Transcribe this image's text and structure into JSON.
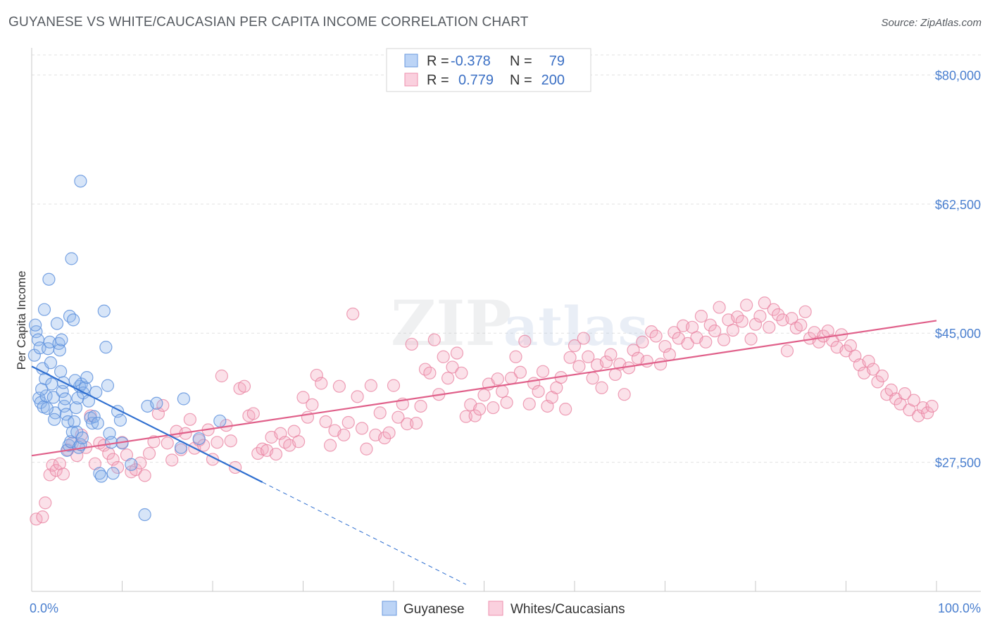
{
  "header": {
    "title": "GUYANESE VS WHITE/CAUCASIAN PER CAPITA INCOME CORRELATION CHART",
    "source": "Source: ZipAtlas.com"
  },
  "watermark": {
    "zip": "ZIP",
    "atlas": "atlas"
  },
  "legend": {
    "rows": [
      {
        "r_label": "R =",
        "r_value": "-0.378",
        "n_label": "N =",
        "n_value": "79",
        "color": "#8bb4ec"
      },
      {
        "r_label": "R =",
        "r_value": "0.779",
        "n_label": "N =",
        "n_value": "200",
        "color": "#f4a9c0"
      }
    ]
  },
  "bottom_legend": [
    {
      "label": "Guyanese",
      "color": "#8bb4ec"
    },
    {
      "label": "Whites/Caucasians",
      "color": "#f4a9c0"
    }
  ],
  "chart_data": {
    "type": "scatter",
    "title": "GUYANESE VS WHITE/CAUCASIAN PER CAPITA INCOME CORRELATION CHART",
    "xlabel": "",
    "ylabel": "Per Capita Income",
    "xlim": [
      0,
      100
    ],
    "ylim": [
      10000,
      83000
    ],
    "x_tick_labels": [
      "0.0%",
      "100.0%"
    ],
    "y_ticks": [
      27500,
      45000,
      62500,
      80000
    ],
    "y_tick_labels": [
      "$27,500",
      "$45,000",
      "$62,500",
      "$80,000"
    ],
    "grid": true,
    "legend_position": "top-center",
    "series": [
      {
        "name": "Guyanese",
        "color": "#8bb4ec",
        "stroke": "#5a8fdc",
        "trend": {
          "x0": 0,
          "y0": 40500,
          "x1": 25.5,
          "y1": 24800,
          "dash_to_x": 48,
          "color": "#2f6fd0"
        },
        "points": [
          [
            0.3,
            42000
          ],
          [
            0.5,
            45200
          ],
          [
            0.7,
            44100
          ],
          [
            0.9,
            43000
          ],
          [
            1.2,
            40200
          ],
          [
            1.5,
            38800
          ],
          [
            0.4,
            46100
          ],
          [
            0.8,
            36200
          ],
          [
            1.0,
            35600
          ],
          [
            1.3,
            35000
          ],
          [
            1.6,
            36500
          ],
          [
            1.8,
            42900
          ],
          [
            2.0,
            43800
          ],
          [
            2.2,
            38100
          ],
          [
            2.4,
            36300
          ],
          [
            2.6,
            34200
          ],
          [
            1.1,
            37400
          ],
          [
            1.7,
            34800
          ],
          [
            2.1,
            41000
          ],
          [
            2.5,
            33300
          ],
          [
            1.4,
            48200
          ],
          [
            1.9,
            52300
          ],
          [
            2.8,
            46300
          ],
          [
            3.0,
            43600
          ],
          [
            3.2,
            39800
          ],
          [
            3.4,
            37100
          ],
          [
            3.6,
            35100
          ],
          [
            3.8,
            34000
          ],
          [
            4.0,
            33000
          ],
          [
            3.1,
            42700
          ],
          [
            3.3,
            44100
          ],
          [
            3.5,
            38300
          ],
          [
            3.7,
            36100
          ],
          [
            3.9,
            29100
          ],
          [
            4.1,
            29800
          ],
          [
            4.3,
            30300
          ],
          [
            4.5,
            31600
          ],
          [
            4.7,
            33000
          ],
          [
            4.9,
            34900
          ],
          [
            5.1,
            36200
          ],
          [
            5.3,
            37800
          ],
          [
            5.5,
            38100
          ],
          [
            5.7,
            36900
          ],
          [
            5.9,
            37600
          ],
          [
            6.1,
            39000
          ],
          [
            6.3,
            35800
          ],
          [
            4.2,
            47300
          ],
          [
            4.4,
            55100
          ],
          [
            4.6,
            46800
          ],
          [
            4.8,
            38600
          ],
          [
            5.0,
            31600
          ],
          [
            5.2,
            29500
          ],
          [
            5.4,
            29900
          ],
          [
            5.6,
            30800
          ],
          [
            6.5,
            33500
          ],
          [
            6.7,
            32800
          ],
          [
            6.9,
            33700
          ],
          [
            7.1,
            37000
          ],
          [
            7.3,
            32800
          ],
          [
            7.5,
            26000
          ],
          [
            7.7,
            25600
          ],
          [
            8.0,
            48000
          ],
          [
            8.2,
            43100
          ],
          [
            8.4,
            37900
          ],
          [
            8.6,
            31400
          ],
          [
            8.8,
            30200
          ],
          [
            9.0,
            26000
          ],
          [
            9.5,
            34400
          ],
          [
            9.8,
            33200
          ],
          [
            10.0,
            30100
          ],
          [
            11.0,
            27200
          ],
          [
            12.5,
            20400
          ],
          [
            12.8,
            35100
          ],
          [
            13.8,
            35500
          ],
          [
            16.5,
            29500
          ],
          [
            16.8,
            36100
          ],
          [
            18.5,
            30700
          ],
          [
            20.8,
            33100
          ],
          [
            5.4,
            65600
          ]
        ]
      },
      {
        "name": "Whites/Caucasians",
        "color": "#f4a9c0",
        "stroke": "#e8809f",
        "trend": {
          "x0": 0,
          "y0": 28400,
          "x1": 100,
          "y1": 46700,
          "color": "#e0608a"
        },
        "points": [
          [
            0.5,
            19800
          ],
          [
            1.2,
            20100
          ],
          [
            1.5,
            22000
          ],
          [
            2.0,
            25800
          ],
          [
            2.3,
            27100
          ],
          [
            2.7,
            26400
          ],
          [
            3.1,
            27300
          ],
          [
            3.5,
            25900
          ],
          [
            4.0,
            29200
          ],
          [
            4.5,
            30100
          ],
          [
            5.0,
            28400
          ],
          [
            5.5,
            31200
          ],
          [
            6.0,
            29500
          ],
          [
            6.5,
            33800
          ],
          [
            7.0,
            27300
          ],
          [
            7.5,
            30100
          ],
          [
            8.0,
            29800
          ],
          [
            8.5,
            28700
          ],
          [
            9.0,
            27900
          ],
          [
            9.5,
            26800
          ],
          [
            10.0,
            30200
          ],
          [
            10.5,
            28500
          ],
          [
            11.0,
            26200
          ],
          [
            11.5,
            26500
          ],
          [
            12.0,
            27400
          ],
          [
            12.5,
            25700
          ],
          [
            13.0,
            28700
          ],
          [
            13.5,
            30300
          ],
          [
            14.0,
            34100
          ],
          [
            14.5,
            35200
          ],
          [
            15.0,
            30100
          ],
          [
            15.5,
            27800
          ],
          [
            16.0,
            31700
          ],
          [
            16.5,
            29200
          ],
          [
            17.0,
            31400
          ],
          [
            17.5,
            33300
          ],
          [
            18.0,
            29400
          ],
          [
            18.5,
            30500
          ],
          [
            19.0,
            29800
          ],
          [
            19.5,
            31900
          ],
          [
            20.0,
            27900
          ],
          [
            20.5,
            30200
          ],
          [
            21.0,
            39200
          ],
          [
            21.5,
            32500
          ],
          [
            22.0,
            30400
          ],
          [
            22.5,
            26800
          ],
          [
            23.0,
            37500
          ],
          [
            23.5,
            37800
          ],
          [
            24.0,
            33800
          ],
          [
            24.5,
            34100
          ],
          [
            25.0,
            28700
          ],
          [
            25.5,
            29300
          ],
          [
            26.0,
            29100
          ],
          [
            26.5,
            30900
          ],
          [
            27.0,
            28600
          ],
          [
            27.5,
            31400
          ],
          [
            28.0,
            30200
          ],
          [
            28.5,
            29800
          ],
          [
            29.0,
            31700
          ],
          [
            29.5,
            30300
          ],
          [
            30.0,
            36300
          ],
          [
            30.5,
            33600
          ],
          [
            31.0,
            35300
          ],
          [
            31.5,
            39300
          ],
          [
            32.0,
            38200
          ],
          [
            32.5,
            33000
          ],
          [
            33.0,
            29800
          ],
          [
            33.5,
            31800
          ],
          [
            34.0,
            37800
          ],
          [
            34.5,
            31200
          ],
          [
            35.0,
            32900
          ],
          [
            35.5,
            47600
          ],
          [
            36.0,
            36400
          ],
          [
            36.5,
            32100
          ],
          [
            37.0,
            29300
          ],
          [
            37.5,
            37900
          ],
          [
            38.0,
            31200
          ],
          [
            38.5,
            34200
          ],
          [
            39.0,
            30800
          ],
          [
            39.5,
            31500
          ],
          [
            40.0,
            37900
          ],
          [
            40.5,
            33600
          ],
          [
            41.0,
            35400
          ],
          [
            41.5,
            32700
          ],
          [
            42.0,
            43500
          ],
          [
            42.5,
            32800
          ],
          [
            43.0,
            35100
          ],
          [
            43.5,
            40100
          ],
          [
            44.0,
            39600
          ],
          [
            44.5,
            44100
          ],
          [
            45.0,
            36700
          ],
          [
            45.5,
            41800
          ],
          [
            46.0,
            38900
          ],
          [
            46.5,
            40400
          ],
          [
            47.0,
            42300
          ],
          [
            47.5,
            39600
          ],
          [
            48.0,
            33700
          ],
          [
            48.5,
            35300
          ],
          [
            49.0,
            33800
          ],
          [
            49.5,
            34700
          ],
          [
            50.0,
            36600
          ],
          [
            50.5,
            38100
          ],
          [
            51.0,
            34900
          ],
          [
            51.5,
            38800
          ],
          [
            52.0,
            37100
          ],
          [
            52.5,
            35600
          ],
          [
            53.0,
            38900
          ],
          [
            53.5,
            41800
          ],
          [
            54.0,
            39700
          ],
          [
            54.5,
            43900
          ],
          [
            55.0,
            35400
          ],
          [
            55.5,
            38200
          ],
          [
            56.0,
            37100
          ],
          [
            56.5,
            39800
          ],
          [
            57.0,
            35100
          ],
          [
            57.5,
            36300
          ],
          [
            58.0,
            37600
          ],
          [
            58.5,
            39000
          ],
          [
            59.0,
            34700
          ],
          [
            59.5,
            41700
          ],
          [
            60.0,
            43300
          ],
          [
            60.5,
            40500
          ],
          [
            61.0,
            44300
          ],
          [
            61.5,
            41800
          ],
          [
            62.0,
            38900
          ],
          [
            62.5,
            40700
          ],
          [
            63.0,
            37600
          ],
          [
            63.5,
            41100
          ],
          [
            64.0,
            42100
          ],
          [
            64.5,
            39400
          ],
          [
            65.0,
            40800
          ],
          [
            65.5,
            36700
          ],
          [
            66.0,
            40300
          ],
          [
            66.5,
            42700
          ],
          [
            67.0,
            41600
          ],
          [
            67.5,
            43800
          ],
          [
            68.0,
            41200
          ],
          [
            68.5,
            45200
          ],
          [
            69.0,
            44600
          ],
          [
            69.5,
            40800
          ],
          [
            70.0,
            43200
          ],
          [
            70.5,
            42100
          ],
          [
            71.0,
            45100
          ],
          [
            71.5,
            44300
          ],
          [
            72.0,
            46000
          ],
          [
            72.5,
            43600
          ],
          [
            73.0,
            45800
          ],
          [
            73.5,
            44400
          ],
          [
            74.0,
            47300
          ],
          [
            74.5,
            43800
          ],
          [
            75.0,
            46100
          ],
          [
            75.5,
            45300
          ],
          [
            76.0,
            48500
          ],
          [
            76.5,
            44100
          ],
          [
            77.0,
            46800
          ],
          [
            77.5,
            45400
          ],
          [
            78.0,
            47200
          ],
          [
            78.5,
            46600
          ],
          [
            79.0,
            48800
          ],
          [
            79.5,
            44200
          ],
          [
            80.0,
            46200
          ],
          [
            80.5,
            47300
          ],
          [
            81.0,
            49100
          ],
          [
            81.5,
            45800
          ],
          [
            82.0,
            48200
          ],
          [
            82.5,
            47500
          ],
          [
            83.0,
            46800
          ],
          [
            83.5,
            42600
          ],
          [
            84.0,
            47000
          ],
          [
            84.5,
            45700
          ],
          [
            85.0,
            46100
          ],
          [
            85.5,
            47900
          ],
          [
            86.0,
            44300
          ],
          [
            86.5,
            45100
          ],
          [
            87.0,
            43800
          ],
          [
            87.5,
            44600
          ],
          [
            88.0,
            45300
          ],
          [
            88.5,
            44000
          ],
          [
            89.0,
            43100
          ],
          [
            89.5,
            44800
          ],
          [
            90.0,
            42600
          ],
          [
            90.5,
            43300
          ],
          [
            91.0,
            41900
          ],
          [
            91.5,
            40700
          ],
          [
            92.0,
            39600
          ],
          [
            92.5,
            41200
          ],
          [
            93.0,
            40100
          ],
          [
            93.5,
            38400
          ],
          [
            94.0,
            39200
          ],
          [
            94.5,
            36700
          ],
          [
            95.0,
            37300
          ],
          [
            95.5,
            36100
          ],
          [
            96.0,
            35400
          ],
          [
            96.5,
            36800
          ],
          [
            97.0,
            34600
          ],
          [
            97.5,
            35900
          ],
          [
            98.0,
            33800
          ],
          [
            98.5,
            34900
          ],
          [
            99.0,
            34200
          ],
          [
            99.5,
            35100
          ]
        ]
      }
    ]
  }
}
